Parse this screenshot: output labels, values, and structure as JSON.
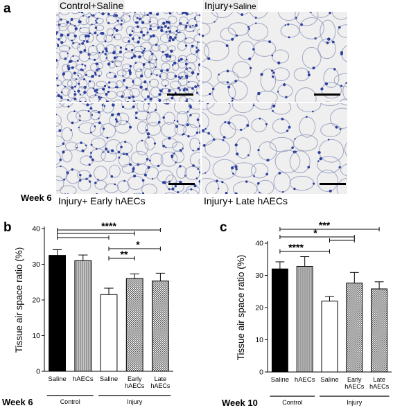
{
  "panel_a": {
    "letter": "a",
    "week_label": "Week 6",
    "tiles": [
      {
        "label": "Control+Saline",
        "label_suffix": "",
        "density": "dense"
      },
      {
        "label": "Injury",
        "label_suffix": "+Saline",
        "density": "sparse"
      },
      {
        "label": "Injury+ Early hAECs",
        "label_suffix": "",
        "density": "medium"
      },
      {
        "label": "Injury+ Late hAECs",
        "label_suffix": "",
        "density": "sparse"
      }
    ],
    "tissue_color": "#2d3f9e",
    "background_color": "#efefef"
  },
  "chart_data": [
    {
      "type": "bar",
      "panel": "b",
      "week_label": "Week 6",
      "ylabel": "Tissue air space ratio (%)",
      "ylim": [
        0,
        40
      ],
      "yticks": [
        0,
        10,
        20,
        30,
        40
      ],
      "categories": [
        "Saline",
        "hAECs",
        "Saline",
        "Early hAECs",
        "Late hAECs"
      ],
      "values": [
        32.5,
        31,
        21.5,
        26,
        25.3
      ],
      "errors": [
        1.6,
        1.6,
        1.8,
        1.3,
        2.2
      ],
      "fills": [
        "black",
        "gray",
        "white",
        "hatch",
        "hatch"
      ],
      "groups": [
        {
          "label": "Control",
          "from": 0,
          "to": 1
        },
        {
          "label": "Injury",
          "from": 2,
          "to": 4
        }
      ],
      "significance": [
        {
          "from": 0,
          "to": 4,
          "label": "****"
        },
        {
          "from": 0,
          "to": 3,
          "label": ""
        },
        {
          "from": 0,
          "to": 2,
          "label": ""
        },
        {
          "from": 2,
          "to": 4,
          "label": "*"
        },
        {
          "from": 2,
          "to": 3,
          "label": "**"
        }
      ]
    },
    {
      "type": "bar",
      "panel": "c",
      "week_label": "Week 10",
      "ylabel": "Tissue air space ratio (%)",
      "ylim": [
        0,
        40
      ],
      "yticks": [
        0,
        10,
        20,
        30,
        40
      ],
      "categories": [
        "Saline",
        "hAECs",
        "Saline",
        "Early hAECs",
        "Late hAECs"
      ],
      "values": [
        32,
        32.8,
        22,
        27.6,
        25.8
      ],
      "errors": [
        2.2,
        3.0,
        1.4,
        3.3,
        2.2
      ],
      "fills": [
        "black",
        "gray",
        "white",
        "hatch",
        "hatch"
      ],
      "groups": [
        {
          "label": "Control",
          "from": 0,
          "to": 1
        },
        {
          "label": "Injury",
          "from": 2,
          "to": 4
        }
      ],
      "significance": [
        {
          "from": 0,
          "to": 4,
          "label": "***"
        },
        {
          "from": 0,
          "to": 3,
          "label": "*"
        },
        {
          "from": 2,
          "to": 3,
          "label": ""
        },
        {
          "from": 0,
          "to": 2,
          "label": "****"
        }
      ]
    }
  ]
}
